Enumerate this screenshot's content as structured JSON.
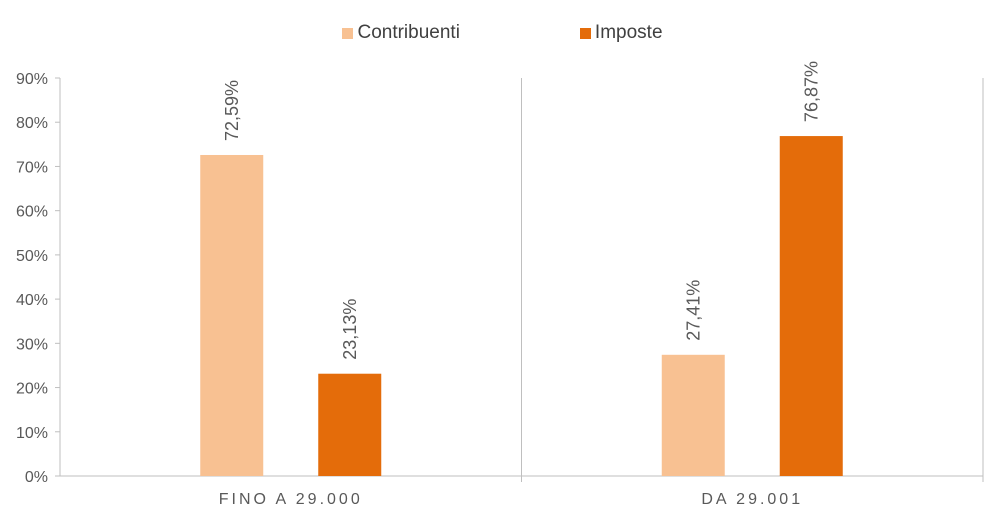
{
  "chart_data": {
    "type": "bar",
    "categories": [
      "FINO A 29.000",
      "DA 29.001"
    ],
    "series": [
      {
        "name": "Contribuenti",
        "color": "#F8C192",
        "values": [
          72.59,
          27.41
        ],
        "labels": [
          "72,59%",
          "27,41%"
        ]
      },
      {
        "name": "Imposte",
        "color": "#E46C0A",
        "values": [
          23.13,
          76.87
        ],
        "labels": [
          "23,13%",
          "76,87%"
        ]
      }
    ],
    "ylim": [
      0,
      90
    ],
    "yticks": [
      "0%",
      "10%",
      "20%",
      "30%",
      "40%",
      "50%",
      "60%",
      "70%",
      "80%",
      "90%"
    ],
    "legend_position": "top-center",
    "grid": false,
    "title": "",
    "xlabel": "",
    "ylabel": ""
  }
}
